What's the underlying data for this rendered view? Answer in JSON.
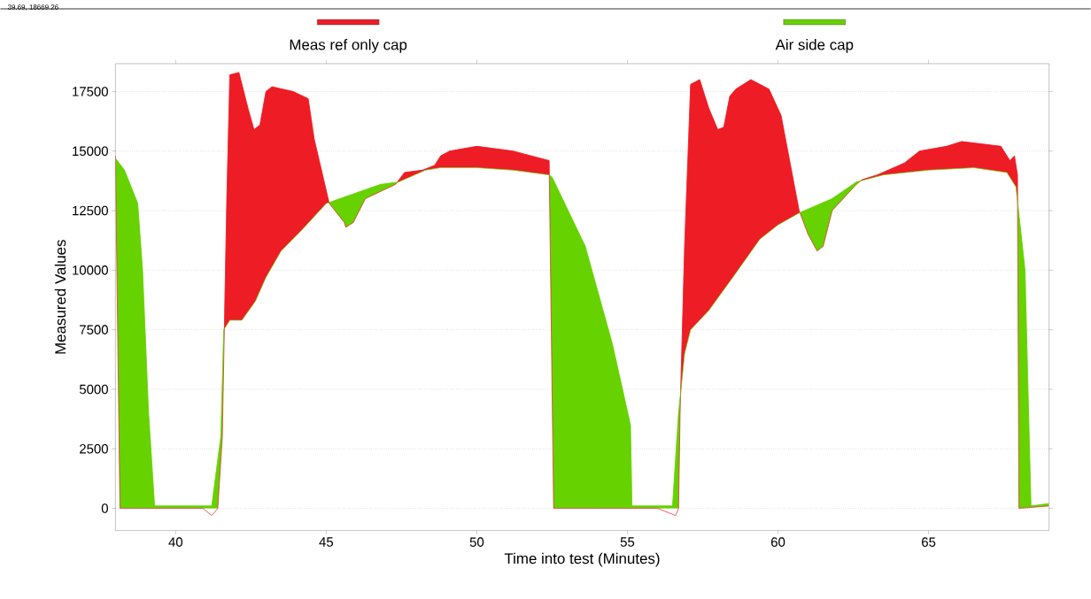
{
  "chart_data": {
    "type": "area",
    "xlabel": "Time into test (Minutes)",
    "ylabel": "Measured Values",
    "annotations": [
      "39.69, 18669.26"
    ],
    "xlim": [
      38,
      69
    ],
    "xticks": [
      40,
      45,
      50,
      55,
      60,
      65
    ],
    "ylim": [
      -930,
      18670
    ],
    "yticks": [
      0,
      2500,
      5000,
      7500,
      10000,
      12500,
      15000,
      17500
    ],
    "grid": "y",
    "legend": "top",
    "series": [
      {
        "name": "Meas ref only cap",
        "color": "#ee1c25",
        "x": [
          38.0,
          38.15,
          40.9,
          41.2,
          41.4,
          41.55,
          41.7,
          41.8,
          42.1,
          42.2,
          42.4,
          42.6,
          42.8,
          43.0,
          43.2,
          43.9,
          44.4,
          44.6,
          45.1,
          45.6,
          45.65,
          45.9,
          46.3,
          46.8,
          47.3,
          47.6,
          48.2,
          48.6,
          48.8,
          49.1,
          50.0,
          51.2,
          51.8,
          52.4,
          52.55,
          56.0,
          56.6,
          56.7,
          56.75,
          56.9,
          57.1,
          57.4,
          57.7,
          58.0,
          58.2,
          58.4,
          58.6,
          59.1,
          59.7,
          60.1,
          60.7,
          61.0,
          61.3,
          61.5,
          61.8,
          62.6,
          62.8,
          63.3,
          64.2,
          64.7,
          65.6,
          66.1,
          67.4,
          67.7,
          67.85,
          67.95,
          68.0,
          69.0
        ],
        "values": [
          14800,
          0,
          0,
          -300,
          0,
          3000,
          13000,
          18200,
          18300,
          17800,
          16800,
          15900,
          16100,
          17500,
          17700,
          17500,
          17200,
          15500,
          12800,
          12000,
          11800,
          12000,
          13000,
          13300,
          13600,
          14100,
          14200,
          14400,
          14800,
          15000,
          15200,
          15000,
          14800,
          14600,
          0,
          0,
          -300,
          0,
          4000,
          11000,
          17800,
          18000,
          16800,
          15900,
          16000,
          17300,
          17600,
          18000,
          17600,
          16500,
          12500,
          11500,
          10800,
          11000,
          12500,
          13600,
          13800,
          14000,
          14500,
          15000,
          15200,
          15400,
          15200,
          14600,
          14800,
          14000,
          0,
          100
        ]
      },
      {
        "name": "Air side cap",
        "color": "#66d200",
        "x": [
          38.0,
          38.3,
          38.74,
          38.9,
          39.1,
          39.3,
          41.2,
          41.5,
          41.6,
          41.8,
          42.2,
          42.65,
          43.0,
          43.5,
          44.2,
          45.0,
          45.9,
          46.8,
          47.4,
          48.3,
          48.8,
          50.0,
          51.2,
          52.4,
          52.5,
          53.6,
          54.5,
          55.1,
          55.15,
          56.5,
          56.7,
          56.9,
          57.1,
          57.7,
          58.5,
          59.4,
          60.0,
          60.7,
          61.8,
          62.6,
          63.5,
          65.0,
          66.5,
          67.6,
          67.9,
          68.2,
          68.3,
          68.4,
          69.0
        ],
        "values": [
          14700,
          14200,
          12800,
          10000,
          4000,
          100,
          100,
          3000,
          7500,
          7900,
          7900,
          8700,
          9700,
          10800,
          11700,
          12800,
          13200,
          13600,
          13700,
          14200,
          14300,
          14300,
          14200,
          14000,
          13900,
          11000,
          6900,
          3500,
          100,
          100,
          4000,
          6500,
          7500,
          8300,
          9700,
          11300,
          11900,
          12400,
          13000,
          13700,
          14000,
          14200,
          14300,
          14100,
          13500,
          10000,
          5000,
          100,
          200
        ]
      }
    ]
  }
}
